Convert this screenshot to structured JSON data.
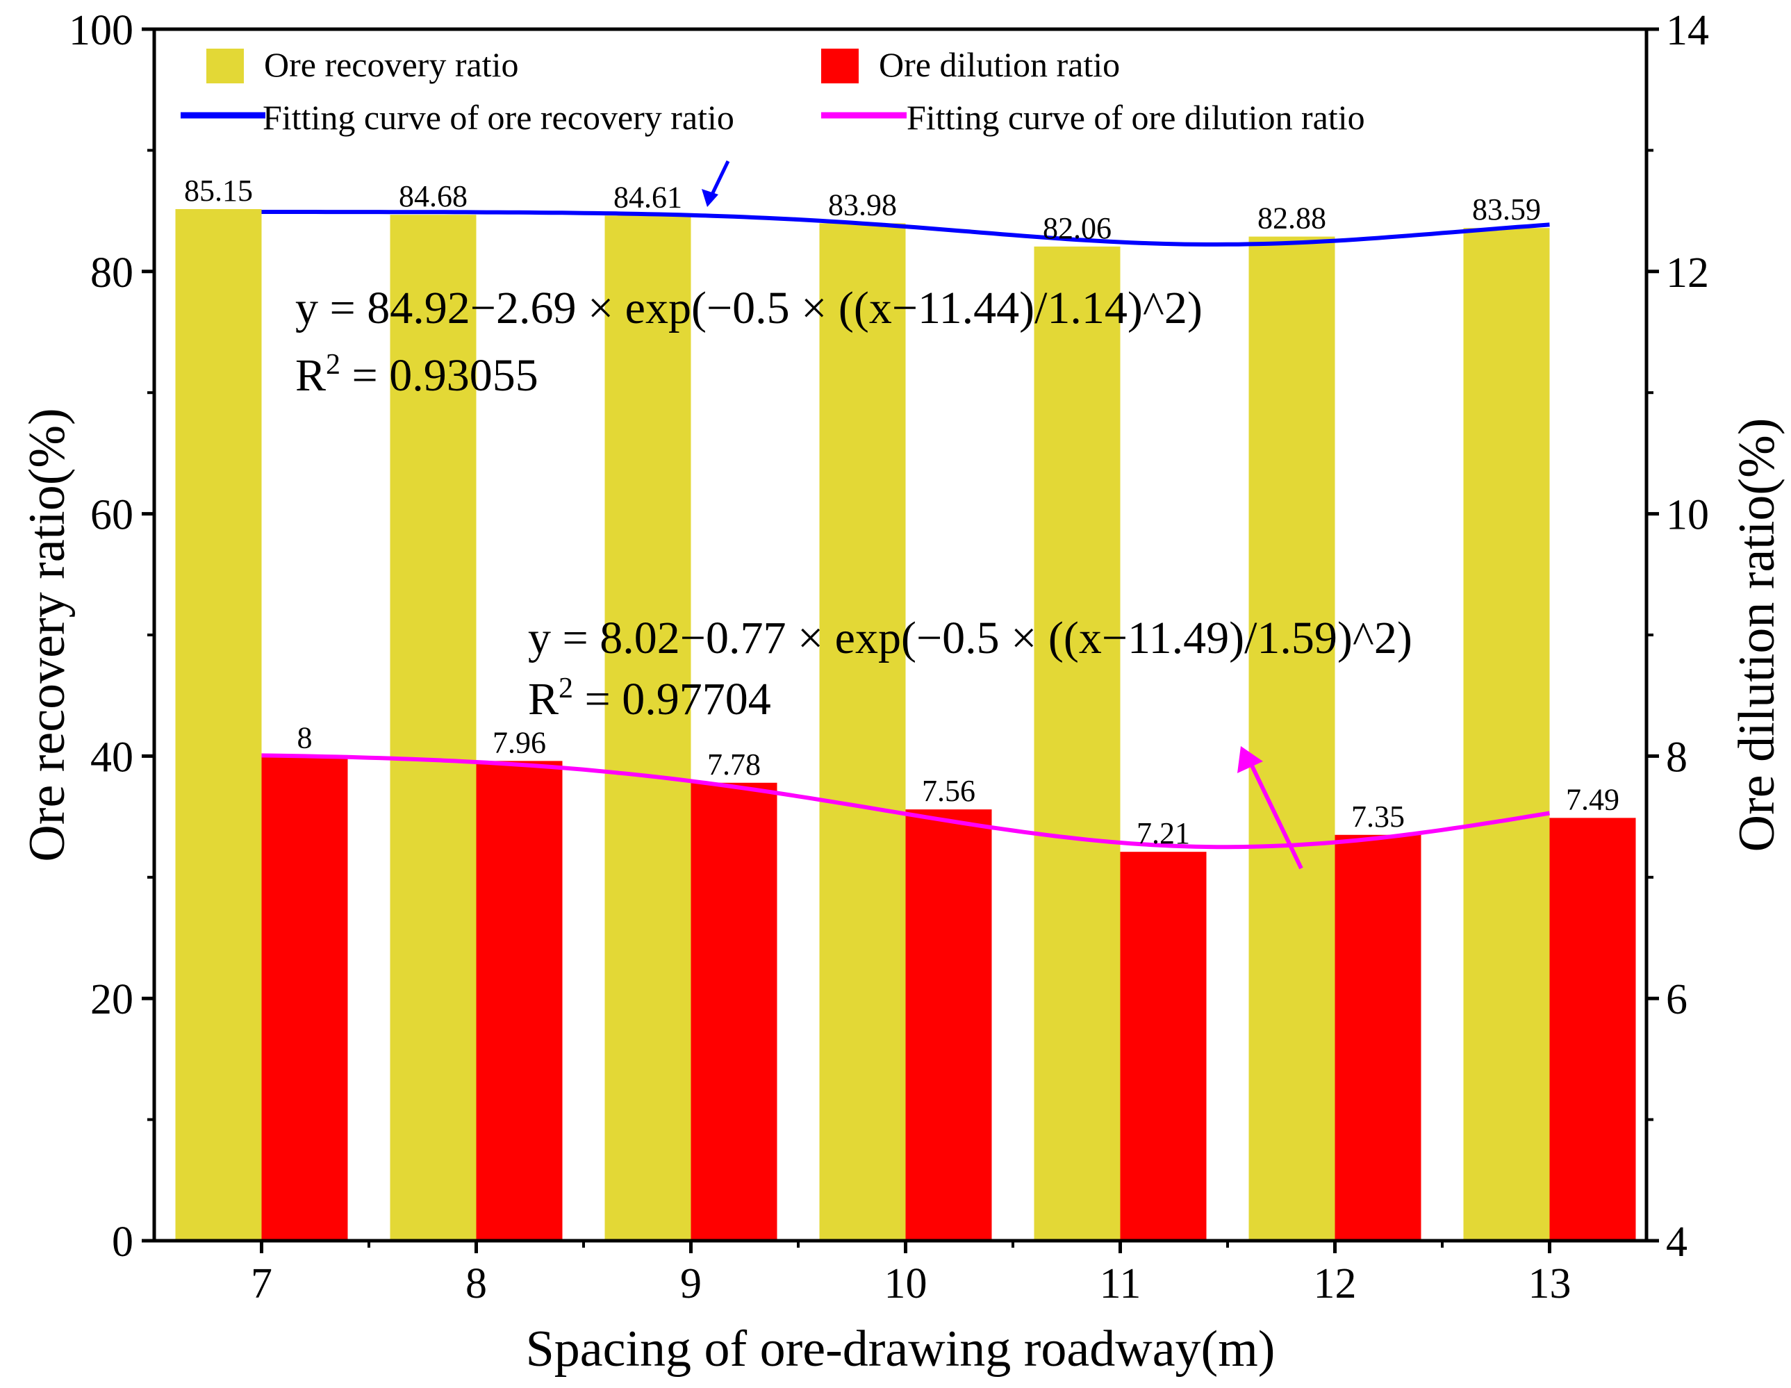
{
  "colors": {
    "recovery_bar": "#E3D836",
    "dilution_bar": "#FF0000",
    "recovery_fit": "#0000FF",
    "dilution_fit": "#FF00FF",
    "axis": "#000000"
  },
  "chart_data": {
    "type": "bar",
    "xlabel": "Spacing of ore-drawing roadway(m)",
    "ylabel_left": "Ore recovery ratio(%)",
    "ylabel_right": "Ore dilution ratio(%)",
    "categories": [
      "7",
      "8",
      "9",
      "10",
      "11",
      "12",
      "13"
    ],
    "x_values": [
      7,
      8,
      9,
      10,
      11,
      12,
      13
    ],
    "ylim_left": [
      0,
      100
    ],
    "ylim_right": [
      4,
      14
    ],
    "yticks_left": [
      0,
      20,
      40,
      60,
      80,
      100
    ],
    "yticks_right": [
      4,
      6,
      8,
      10,
      12,
      14
    ],
    "series": [
      {
        "name": "Ore recovery ratio",
        "axis": "left",
        "values": [
          85.15,
          84.68,
          84.61,
          83.98,
          82.06,
          82.88,
          83.59
        ],
        "labels": [
          "85.15",
          "84.68",
          "84.61",
          "83.98",
          "82.06",
          "82.88",
          "83.59"
        ]
      },
      {
        "name": "Ore dilution ratio",
        "axis": "right",
        "values": [
          8,
          7.96,
          7.78,
          7.56,
          7.21,
          7.35,
          7.49
        ],
        "labels": [
          "8",
          "7.96",
          "7.78",
          "7.56",
          "7.21",
          "7.35",
          "7.49"
        ]
      }
    ],
    "fits": [
      {
        "name": "Fitting curve of ore recovery ratio",
        "axis": "left",
        "model": "gauss",
        "y0": 84.92,
        "A": -2.69,
        "xc": 11.44,
        "w": 1.14,
        "equation": "y = 84.92−2.69 × exp(−0.5 × ((x−11.44)/1.14)^2)",
        "r2_label": "R",
        "r2_sup": "2",
        "r2_value": " = 0.93055"
      },
      {
        "name": "Fitting curve of ore dilution ratio",
        "axis": "right",
        "model": "gauss",
        "y0": 8.02,
        "A": -0.77,
        "xc": 11.49,
        "w": 1.59,
        "equation": "y = 8.02−0.77 × exp(−0.5 × ((x−11.49)/1.59)^2)",
        "r2_label": "R",
        "r2_sup": "2",
        "r2_value": " = 0.97704"
      }
    ],
    "legend_position": "top"
  }
}
